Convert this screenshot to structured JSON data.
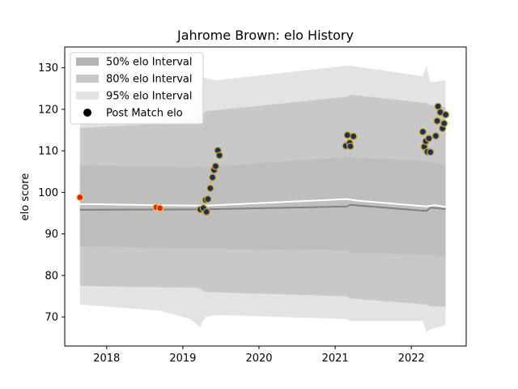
{
  "chart_data": {
    "type": "area",
    "title": "Jahrome Brown: elo History",
    "xlabel": "",
    "ylabel": "elo score",
    "xlim": [
      2017.45,
      2022.72
    ],
    "ylim": [
      63.0,
      135.0
    ],
    "xticks": [
      {
        "value": 2018,
        "label": "2018"
      },
      {
        "value": 2019,
        "label": "2019"
      },
      {
        "value": 2020,
        "label": "2020"
      },
      {
        "value": 2021,
        "label": "2021"
      },
      {
        "value": 2022,
        "label": "2022"
      }
    ],
    "yticks": [
      {
        "value": 70,
        "label": "70"
      },
      {
        "value": 80,
        "label": "80"
      },
      {
        "value": 90,
        "label": "90"
      },
      {
        "value": 100,
        "label": "100"
      },
      {
        "value": 110,
        "label": "110"
      },
      {
        "value": 120,
        "label": "120"
      },
      {
        "value": 130,
        "label": "130"
      }
    ],
    "grid": false,
    "legend": {
      "placement": "top-left",
      "entries": [
        {
          "label": "50% elo Interval",
          "kind": "patch",
          "color": "#b3b3b3"
        },
        {
          "label": "80% elo Interval",
          "kind": "patch",
          "color": "#c8c8c8"
        },
        {
          "label": "95% elo Interval",
          "kind": "patch",
          "color": "#e3e3e3"
        },
        {
          "label": "Post Match elo",
          "kind": "marker",
          "color": "#000000"
        }
      ]
    },
    "bands": [
      {
        "name": "95% elo Interval",
        "color": "#e3e3e3",
        "x": [
          2017.65,
          2018.7,
          2019.1,
          2019.23,
          2019.25,
          2019.3,
          2019.45,
          2021.15,
          2021.2,
          2022.15,
          2022.2,
          2022.25,
          2022.45
        ],
        "upper": [
          117.0,
          117.5,
          118.5,
          124.5,
          128.0,
          127.5,
          127.0,
          130.5,
          130.5,
          128.0,
          130.5,
          126.5,
          127.0
        ],
        "lower": [
          73.0,
          71.5,
          69.5,
          67.5,
          68.5,
          70.0,
          70.5,
          69.5,
          69.0,
          69.0,
          66.3,
          67.0,
          68.0
        ]
      },
      {
        "name": "80% elo Interval",
        "color": "#c8c8c8",
        "x": [
          2017.65,
          2019.2,
          2019.3,
          2021.15,
          2021.2,
          2022.2,
          2022.25,
          2022.45
        ],
        "upper": [
          115.5,
          117.0,
          119.5,
          123.0,
          123.5,
          121.5,
          121.0,
          120.5
        ],
        "lower": [
          77.5,
          77.0,
          76.0,
          75.0,
          74.5,
          73.0,
          72.5,
          72.5
        ]
      },
      {
        "name": "50% elo Interval",
        "color": "#bebebe",
        "x": [
          2017.65,
          2019.2,
          2021.15,
          2021.2,
          2022.2,
          2022.45
        ],
        "upper": [
          106.5,
          106.0,
          108.5,
          108.5,
          107.5,
          106.5
        ],
        "lower": [
          87.0,
          86.5,
          86.0,
          85.5,
          85.0,
          84.5
        ]
      }
    ],
    "series": [
      {
        "name": "",
        "type": "line",
        "color": "#ffffff",
        "x": [
          2017.65,
          2018.7,
          2019.3,
          2021.15,
          2021.3,
          2022.2,
          2022.3,
          2022.45
        ],
        "y": [
          97.2,
          96.9,
          96.8,
          98.4,
          98.0,
          96.6,
          96.9,
          96.5
        ]
      },
      {
        "name": "",
        "type": "line",
        "color": "#808080",
        "x": [
          2017.65,
          2019.2,
          2021.15,
          2021.2,
          2022.2,
          2022.25,
          2022.45
        ],
        "y": [
          95.8,
          95.9,
          96.6,
          97.0,
          95.5,
          96.3,
          96.0
        ]
      },
      {
        "name": "Post Match elo",
        "type": "scatter",
        "points": [
          {
            "x": 2017.65,
            "y": 98.8,
            "fill": "#e8211b",
            "edge": "#f0d050"
          },
          {
            "x": 2018.65,
            "y": 96.4,
            "fill": "#e8211b",
            "edge": "#f0d050"
          },
          {
            "x": 2018.7,
            "y": 96.2,
            "fill": "#e8211b",
            "edge": "#f0d050"
          },
          {
            "x": 2019.23,
            "y": 95.9,
            "fill": "#1a3350",
            "edge": "#c8a03a"
          },
          {
            "x": 2019.27,
            "y": 96.2,
            "fill": "#1a3350",
            "edge": "#c8a03a"
          },
          {
            "x": 2019.31,
            "y": 95.3,
            "fill": "#1a3350",
            "edge": "#c8a03a"
          },
          {
            "x": 2019.3,
            "y": 98.2,
            "fill": "#1a3350",
            "edge": "#c8a03a"
          },
          {
            "x": 2019.33,
            "y": 98.4,
            "fill": "#1a3350",
            "edge": "#c8a03a"
          },
          {
            "x": 2019.36,
            "y": 101.0,
            "fill": "#1a3350",
            "edge": "#c8a03a"
          },
          {
            "x": 2019.39,
            "y": 103.6,
            "fill": "#1a3350",
            "edge": "#c8a03a"
          },
          {
            "x": 2019.41,
            "y": 105.4,
            "fill": "#1a3350",
            "edge": "#c8a03a"
          },
          {
            "x": 2019.43,
            "y": 106.3,
            "fill": "#1a3350",
            "edge": "#c8a03a"
          },
          {
            "x": 2019.46,
            "y": 110.1,
            "fill": "#1a3350",
            "edge": "#c8a03a"
          },
          {
            "x": 2019.48,
            "y": 108.9,
            "fill": "#1a3350",
            "edge": "#c8a03a"
          },
          {
            "x": 2021.14,
            "y": 111.2,
            "fill": "#1a3350",
            "edge": "#c8a03a"
          },
          {
            "x": 2021.16,
            "y": 113.8,
            "fill": "#1a3350",
            "edge": "#c8a03a"
          },
          {
            "x": 2021.19,
            "y": 111.9,
            "fill": "#1a3350",
            "edge": "#c8a03a"
          },
          {
            "x": 2021.2,
            "y": 111.1,
            "fill": "#1a3350",
            "edge": "#c8a03a"
          },
          {
            "x": 2021.24,
            "y": 113.5,
            "fill": "#1a3350",
            "edge": "#c8a03a"
          },
          {
            "x": 2022.15,
            "y": 114.6,
            "fill": "#1a3350",
            "edge": "#c8a03a"
          },
          {
            "x": 2022.17,
            "y": 111.0,
            "fill": "#1a3350",
            "edge": "#c8a03a"
          },
          {
            "x": 2022.19,
            "y": 112.3,
            "fill": "#1a3350",
            "edge": "#c8a03a"
          },
          {
            "x": 2022.21,
            "y": 109.8,
            "fill": "#1a3350",
            "edge": "#c8a03a"
          },
          {
            "x": 2022.23,
            "y": 113.0,
            "fill": "#1a3350",
            "edge": "#c8a03a"
          },
          {
            "x": 2022.25,
            "y": 109.7,
            "fill": "#1a3350",
            "edge": "#c8a03a"
          },
          {
            "x": 2022.32,
            "y": 113.6,
            "fill": "#1a3350",
            "edge": "#c8a03a"
          },
          {
            "x": 2022.34,
            "y": 117.2,
            "fill": "#1a3350",
            "edge": "#c8a03a"
          },
          {
            "x": 2022.35,
            "y": 120.7,
            "fill": "#1a3350",
            "edge": "#c8a03a"
          },
          {
            "x": 2022.38,
            "y": 119.3,
            "fill": "#1a3350",
            "edge": "#c8a03a"
          },
          {
            "x": 2022.41,
            "y": 115.4,
            "fill": "#1a3350",
            "edge": "#c8a03a"
          },
          {
            "x": 2022.43,
            "y": 116.6,
            "fill": "#1a3350",
            "edge": "#c8a03a"
          },
          {
            "x": 2022.45,
            "y": 118.7,
            "fill": "#1a3350",
            "edge": "#c8a03a"
          }
        ]
      }
    ]
  }
}
